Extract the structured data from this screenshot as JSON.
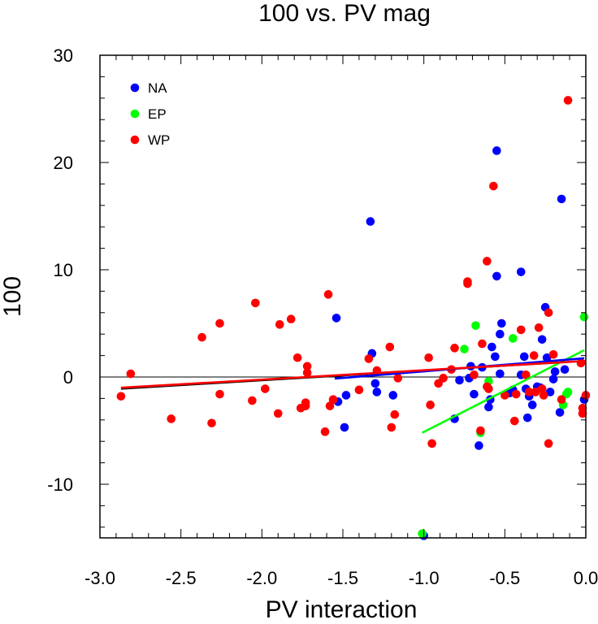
{
  "chart_data": {
    "type": "scatter",
    "title": "100 vs. PV mag",
    "xlabel": "PV interaction",
    "ylabel": "100",
    "xlim": [
      -3.0,
      0.0
    ],
    "ylim": [
      -15,
      30
    ],
    "x_ticks": [
      -3.0,
      -2.5,
      -2.0,
      -1.5,
      -1.0,
      -0.5,
      0.0
    ],
    "x_tick_labels": [
      "-3.0",
      "-2.5",
      "-2.0",
      "-1.5",
      "-1.0",
      "-0.5",
      "0.0"
    ],
    "y_ticks": [
      -10,
      0,
      10,
      20,
      30
    ],
    "y_tick_labels": [
      "-10",
      "0",
      "10",
      "20",
      "30"
    ],
    "zero_line": 0,
    "grid": false,
    "legend_position": "top-left",
    "series": [
      {
        "name": "NA",
        "color": "#0000ff",
        "points": [
          [
            -1.54,
            5.5
          ],
          [
            -1.53,
            -2.3
          ],
          [
            -1.49,
            -4.7
          ],
          [
            -1.48,
            -1.7
          ],
          [
            -1.33,
            14.5
          ],
          [
            -1.32,
            2.2
          ],
          [
            -1.3,
            -0.6
          ],
          [
            -1.29,
            -1.4
          ],
          [
            -1.19,
            -1.7
          ],
          [
            -1.0,
            -14.8
          ],
          [
            -0.81,
            -3.9
          ],
          [
            -0.78,
            -0.3
          ],
          [
            -0.72,
            -0.1
          ],
          [
            -0.71,
            1.0
          ],
          [
            -0.69,
            -1.6
          ],
          [
            -0.66,
            -6.4
          ],
          [
            -0.64,
            0.9
          ],
          [
            -0.6,
            -2.8
          ],
          [
            -0.59,
            -2.1
          ],
          [
            -0.58,
            2.8
          ],
          [
            -0.56,
            1.9
          ],
          [
            -0.55,
            21.1
          ],
          [
            -0.55,
            9.4
          ],
          [
            -0.53,
            0.3
          ],
          [
            -0.53,
            4.0
          ],
          [
            -0.52,
            5.0
          ],
          [
            -0.47,
            -1.5
          ],
          [
            -0.45,
            -1.2
          ],
          [
            -0.4,
            9.8
          ],
          [
            -0.4,
            0.2
          ],
          [
            -0.38,
            1.9
          ],
          [
            -0.37,
            -1.1
          ],
          [
            -0.36,
            -3.8
          ],
          [
            -0.35,
            -1.8
          ],
          [
            -0.33,
            -2.6
          ],
          [
            -0.3,
            -0.9
          ],
          [
            -0.28,
            -1.0
          ],
          [
            -0.27,
            3.5
          ],
          [
            -0.25,
            6.5
          ],
          [
            -0.24,
            1.8
          ],
          [
            -0.22,
            -1.4
          ],
          [
            -0.2,
            -0.2
          ],
          [
            -0.19,
            0.5
          ],
          [
            -0.16,
            -3.3
          ],
          [
            -0.15,
            16.6
          ],
          [
            -0.13,
            0.7
          ],
          [
            -0.01,
            -2.1
          ]
        ],
        "fit": [
          [
            -1.55,
            -0.15
          ],
          [
            -0.01,
            1.75
          ]
        ]
      },
      {
        "name": "EP",
        "color": "#00ff00",
        "points": [
          [
            -1.01,
            -14.6
          ],
          [
            -0.75,
            2.6
          ],
          [
            -0.68,
            4.8
          ],
          [
            -0.65,
            -5.2
          ],
          [
            -0.6,
            -0.4
          ],
          [
            -0.45,
            3.6
          ],
          [
            -0.14,
            -2.6
          ],
          [
            -0.12,
            -1.6
          ],
          [
            -0.11,
            -1.4
          ],
          [
            -0.01,
            5.6
          ]
        ],
        "fit": [
          [
            -1.01,
            -5.2
          ],
          [
            -0.01,
            2.5
          ]
        ]
      },
      {
        "name": "WP",
        "color": "#ff0000",
        "points": [
          [
            -2.87,
            -1.8
          ],
          [
            -2.81,
            0.3
          ],
          [
            -2.56,
            -3.9
          ],
          [
            -2.37,
            3.7
          ],
          [
            -2.31,
            -4.3
          ],
          [
            -2.26,
            5.0
          ],
          [
            -2.26,
            -1.6
          ],
          [
            -2.06,
            -2.2
          ],
          [
            -2.04,
            6.9
          ],
          [
            -1.98,
            -1.1
          ],
          [
            -1.9,
            -3.4
          ],
          [
            -1.89,
            4.9
          ],
          [
            -1.82,
            5.4
          ],
          [
            -1.78,
            1.8
          ],
          [
            -1.76,
            -2.9
          ],
          [
            -1.73,
            -2.4
          ],
          [
            -1.73,
            -2.7
          ],
          [
            -1.72,
            0.4
          ],
          [
            -1.72,
            1.0
          ],
          [
            -1.61,
            -5.1
          ],
          [
            -1.59,
            7.7
          ],
          [
            -1.58,
            -2.7
          ],
          [
            -1.56,
            -2.1
          ],
          [
            -1.4,
            -1.2
          ],
          [
            -1.34,
            1.7
          ],
          [
            -1.29,
            0.6
          ],
          [
            -1.21,
            2.8
          ],
          [
            -1.2,
            -4.7
          ],
          [
            -1.18,
            -3.5
          ],
          [
            -1.16,
            -0.1
          ],
          [
            -0.97,
            1.8
          ],
          [
            -0.96,
            -2.6
          ],
          [
            -0.95,
            -6.2
          ],
          [
            -0.91,
            -0.6
          ],
          [
            -0.88,
            -0.1
          ],
          [
            -0.83,
            0.7
          ],
          [
            -0.81,
            2.7
          ],
          [
            -0.73,
            8.7
          ],
          [
            -0.73,
            8.9
          ],
          [
            -0.69,
            0.2
          ],
          [
            -0.65,
            -5.0
          ],
          [
            -0.64,
            3.1
          ],
          [
            -0.61,
            10.8
          ],
          [
            -0.61,
            -0.9
          ],
          [
            -0.6,
            -1.1
          ],
          [
            -0.57,
            17.8
          ],
          [
            -0.5,
            -1.7
          ],
          [
            -0.44,
            -4.1
          ],
          [
            -0.43,
            -1.6
          ],
          [
            -0.4,
            4.4
          ],
          [
            -0.37,
            0.2
          ],
          [
            -0.35,
            -1.4
          ],
          [
            -0.32,
            2.0
          ],
          [
            -0.31,
            -1.4
          ],
          [
            -0.29,
            4.6
          ],
          [
            -0.27,
            -1.1
          ],
          [
            -0.26,
            -1.7
          ],
          [
            -0.23,
            -6.2
          ],
          [
            -0.23,
            6.0
          ],
          [
            -0.2,
            2.1
          ],
          [
            -0.15,
            -2.1
          ],
          [
            -0.11,
            25.8
          ],
          [
            -0.03,
            1.3
          ],
          [
            -0.02,
            -2.9
          ],
          [
            -0.02,
            -3.4
          ],
          [
            0.0,
            -1.7
          ]
        ],
        "fit": [
          [
            -2.87,
            -1.0
          ],
          [
            0.0,
            1.5
          ]
        ]
      }
    ],
    "overall_fit": {
      "color": "#000000",
      "line": [
        [
          -2.87,
          -1.1
        ],
        [
          0.0,
          1.5
        ]
      ]
    }
  }
}
